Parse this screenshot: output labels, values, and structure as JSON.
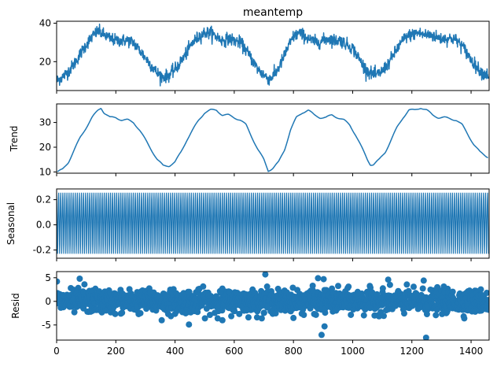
{
  "figure": {
    "background": "#ffffff",
    "series_color": "#1f77b4"
  },
  "chart_data": [
    {
      "type": "line",
      "title": "meantemp",
      "ylabel": "",
      "xlim": [
        0,
        1461
      ],
      "ylim": [
        5,
        41
      ],
      "yticks": [
        20,
        40
      ],
      "show_xticklabels": false,
      "grid": false,
      "series": [
        {
          "kind": "observed",
          "points": [
            [
              0,
              10
            ],
            [
              20,
              12
            ],
            [
              40,
              15
            ],
            [
              60,
              19
            ],
            [
              80,
              24
            ],
            [
              100,
              29
            ],
            [
              120,
              33
            ],
            [
              140,
              36
            ],
            [
              160,
              34
            ],
            [
              180,
              32
            ],
            [
              200,
              31
            ],
            [
              220,
              31
            ],
            [
              240,
              31
            ],
            [
              260,
              30
            ],
            [
              280,
              26
            ],
            [
              300,
              22
            ],
            [
              320,
              18
            ],
            [
              340,
              14
            ],
            [
              360,
              12
            ],
            [
              380,
              13
            ],
            [
              400,
              16
            ],
            [
              420,
              20
            ],
            [
              440,
              25
            ],
            [
              460,
              30
            ],
            [
              480,
              33
            ],
            [
              500,
              35
            ],
            [
              520,
              35
            ],
            [
              540,
              33
            ],
            [
              560,
              31
            ],
            [
              580,
              32
            ],
            [
              600,
              31
            ],
            [
              620,
              30
            ],
            [
              640,
              26
            ],
            [
              660,
              21
            ],
            [
              680,
              16
            ],
            [
              700,
              13
            ],
            [
              720,
              11
            ],
            [
              740,
              14
            ],
            [
              760,
              20
            ],
            [
              780,
              27
            ],
            [
              800,
              33
            ],
            [
              820,
              35
            ],
            [
              840,
              33
            ],
            [
              860,
              31
            ],
            [
              880,
              30
            ],
            [
              900,
              31
            ],
            [
              920,
              32
            ],
            [
              940,
              31
            ],
            [
              960,
              31
            ],
            [
              980,
              29
            ],
            [
              1000,
              27
            ],
            [
              1020,
              22
            ],
            [
              1040,
              17
            ],
            [
              1060,
              14
            ],
            [
              1080,
              13
            ],
            [
              1100,
              15
            ],
            [
              1120,
              19
            ],
            [
              1140,
              24
            ],
            [
              1160,
              29
            ],
            [
              1180,
              33
            ],
            [
              1200,
              34
            ],
            [
              1220,
              35
            ],
            [
              1240,
              34
            ],
            [
              1260,
              34
            ],
            [
              1280,
              33
            ],
            [
              1300,
              32
            ],
            [
              1320,
              32
            ],
            [
              1340,
              32
            ],
            [
              1360,
              30
            ],
            [
              1380,
              26
            ],
            [
              1400,
              21
            ],
            [
              1420,
              17
            ],
            [
              1440,
              14
            ],
            [
              1461,
              13
            ]
          ]
        }
      ]
    },
    {
      "type": "line",
      "ylabel": "Trend",
      "xlim": [
        0,
        1461
      ],
      "ylim": [
        9.5,
        37.5
      ],
      "yticks": [
        10,
        20,
        30
      ],
      "show_xticklabels": false,
      "grid": false,
      "series": [
        {
          "kind": "trend",
          "points": [
            [
              3,
              10
            ],
            [
              20,
              11
            ],
            [
              40,
              14
            ],
            [
              60,
              19
            ],
            [
              80,
              24
            ],
            [
              100,
              28
            ],
            [
              120,
              32
            ],
            [
              140,
              35
            ],
            [
              150,
              36
            ],
            [
              160,
              34
            ],
            [
              180,
              32
            ],
            [
              200,
              32
            ],
            [
              220,
              31
            ],
            [
              240,
              31
            ],
            [
              260,
              30
            ],
            [
              280,
              27
            ],
            [
              300,
              23
            ],
            [
              320,
              19
            ],
            [
              340,
              15
            ],
            [
              360,
              12.5
            ],
            [
              380,
              12.5
            ],
            [
              400,
              14
            ],
            [
              420,
              18
            ],
            [
              440,
              23
            ],
            [
              460,
              27
            ],
            [
              480,
              31
            ],
            [
              500,
              34
            ],
            [
              520,
              35
            ],
            [
              540,
              35
            ],
            [
              560,
              33
            ],
            [
              580,
              33
            ],
            [
              600,
              32
            ],
            [
              620,
              31
            ],
            [
              640,
              29
            ],
            [
              660,
              24
            ],
            [
              680,
              19
            ],
            [
              700,
              15
            ],
            [
              715,
              10.5
            ],
            [
              730,
              11.5
            ],
            [
              750,
              14
            ],
            [
              770,
              19
            ],
            [
              790,
              27
            ],
            [
              810,
              32
            ],
            [
              830,
              34
            ],
            [
              850,
              35
            ],
            [
              870,
              33
            ],
            [
              890,
              32
            ],
            [
              910,
              32
            ],
            [
              930,
              33
            ],
            [
              950,
              32
            ],
            [
              970,
              31
            ],
            [
              990,
              29
            ],
            [
              1010,
              25
            ],
            [
              1030,
              20
            ],
            [
              1050,
              15
            ],
            [
              1060,
              13
            ],
            [
              1070,
              13
            ],
            [
              1090,
              15
            ],
            [
              1110,
              18
            ],
            [
              1130,
              23
            ],
            [
              1150,
              28
            ],
            [
              1170,
              32
            ],
            [
              1190,
              35
            ],
            [
              1210,
              35
            ],
            [
              1230,
              36
            ],
            [
              1250,
              35
            ],
            [
              1270,
              33
            ],
            [
              1290,
              32
            ],
            [
              1310,
              32
            ],
            [
              1330,
              31.5
            ],
            [
              1350,
              31
            ],
            [
              1370,
              29
            ],
            [
              1390,
              25
            ],
            [
              1410,
              21
            ],
            [
              1430,
              18
            ],
            [
              1450,
              16.5
            ],
            [
              1458,
              16
            ]
          ]
        }
      ]
    },
    {
      "type": "line",
      "ylabel": "Seasonal",
      "xlim": [
        0,
        1461
      ],
      "ylim": [
        -0.265,
        0.285
      ],
      "yticks": [
        -0.2,
        0.0,
        0.2
      ],
      "show_xticklabels": false,
      "grid": false,
      "series": [
        {
          "kind": "seasonal",
          "period": 7,
          "amplitude_min": -0.23,
          "amplitude_max": 0.255,
          "pattern": [
            0.255,
            0.12,
            -0.03,
            -0.23,
            -0.15,
            0.05,
            0.2
          ]
        }
      ]
    },
    {
      "type": "scatter",
      "ylabel": "Resid",
      "xlim": [
        0,
        1461
      ],
      "ylim": [
        -8.2,
        6.3
      ],
      "yticks": [
        -5,
        0,
        5
      ],
      "xticks": [
        0,
        200,
        400,
        600,
        800,
        1000,
        1200,
        1400
      ],
      "show_xticklabels": true,
      "grid": false,
      "baseline": 0,
      "series": [
        {
          "kind": "resid",
          "noise_scale": 1.2,
          "n_points": 1461,
          "outliers": [
            [
              1,
              4.2
            ],
            [
              78,
              4.8
            ],
            [
              94,
              3.6
            ],
            [
              705,
              5.7
            ],
            [
              865,
              2.4
            ],
            [
              883,
              4.9
            ],
            [
              895,
              -7.1
            ],
            [
              902,
              4.7
            ],
            [
              905,
              -5.3
            ],
            [
              1120,
              4.6
            ],
            [
              1240,
              4.4
            ],
            [
              1248,
              -7.7
            ],
            [
              447,
              -4.9
            ],
            [
              355,
              -4.0
            ],
            [
              560,
              -4.0
            ]
          ]
        }
      ]
    }
  ]
}
